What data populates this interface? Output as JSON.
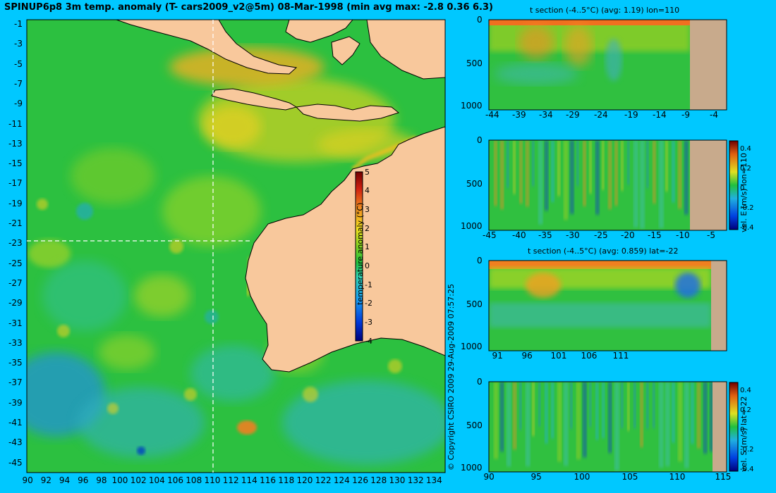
{
  "title": "SPINUP6p8 3m temp. anomaly (T- cars2009_v2@5m) 08-Mar-1998 (min avg max: -2.8 0.36 6.3)",
  "copyright": "© Copyright CSIRO 2009  29-Aug-2009 07:57:25",
  "colors": {
    "background": "#00c8ff",
    "land": "#f8c89c",
    "section_land": "#c8aa8c"
  },
  "chart_data": [
    {
      "type": "heatmap",
      "name": "map",
      "x_ticks": [
        "90",
        "92",
        "94",
        "96",
        "98",
        "100",
        "102",
        "104",
        "106",
        "108",
        "110",
        "112",
        "114",
        "116",
        "118",
        "120",
        "122",
        "124",
        "126",
        "128",
        "130",
        "132",
        "134"
      ],
      "y_ticks": [
        "-1",
        "-3",
        "-5",
        "-7",
        "-9",
        "-11",
        "-13",
        "-15",
        "-17",
        "-19",
        "-21",
        "-23",
        "-25",
        "-27",
        "-29",
        "-31",
        "-33",
        "-35",
        "-37",
        "-39",
        "-41",
        "-43",
        "-45"
      ],
      "xlim": [
        90,
        135
      ],
      "ylim": [
        -45,
        0
      ],
      "section_lines": {
        "lon": 110,
        "lat": -22
      },
      "colorbar": {
        "label": "temperature anomaly (°C)",
        "ticks": [
          "5",
          "4",
          "3",
          "2",
          "1",
          "0",
          "-1",
          "-2",
          "-3",
          "-4"
        ],
        "range": [
          -4,
          5
        ]
      }
    },
    {
      "type": "heatmap",
      "name": "t-section-lon110",
      "title": "t section (-4..5°C) (avg: 1.19) lon=110",
      "x_ticks": [
        "-44",
        "-39",
        "-34",
        "-29",
        "-24",
        "-19",
        "-14",
        "-9",
        "-4"
      ],
      "y_ticks": [
        "0",
        "500",
        "1000"
      ]
    },
    {
      "type": "heatmap",
      "name": "u-section-lon110",
      "x_ticks": [
        "-45",
        "-40",
        "-35",
        "-30",
        "-25",
        "-20",
        "-15",
        "-10",
        "-5"
      ],
      "y_ticks": [
        "0",
        "500",
        "1000"
      ],
      "colorbar": {
        "label": "vel. E (m/s) lon=110",
        "ticks": [
          "0.4",
          "0.2",
          "0",
          "-0.2",
          "-0.4"
        ],
        "range": [
          -0.4,
          0.4
        ]
      }
    },
    {
      "type": "heatmap",
      "name": "t-section-lat-22",
      "title": "t section (-4..5°C) (avg: 0.859) lat=-22",
      "x_ticks": [
        "91",
        "96",
        "101",
        "106",
        "111"
      ],
      "y_ticks": [
        "0",
        "500",
        "1000"
      ]
    },
    {
      "type": "heatmap",
      "name": "v-section-lat-22",
      "x_ticks": [
        "90",
        "95",
        "100",
        "105",
        "110",
        "115"
      ],
      "y_ticks": [
        "0",
        "500",
        "1000"
      ],
      "colorbar": {
        "label": "vel. S (m/s) lat=-22",
        "ticks": [
          "0.4",
          "0.2",
          "0",
          "-0.2",
          "-0.4"
        ],
        "range": [
          -0.4,
          0.4
        ]
      }
    }
  ]
}
